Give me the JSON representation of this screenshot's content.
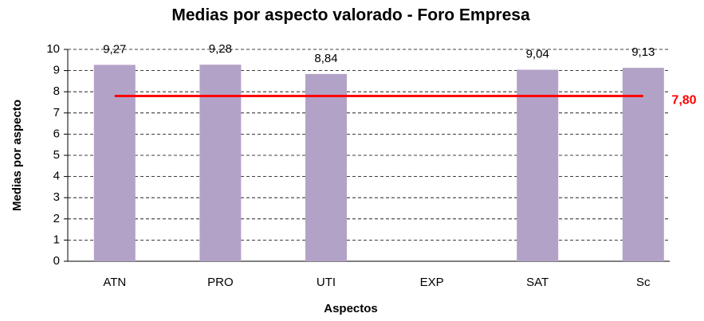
{
  "chart_data": {
    "type": "bar",
    "title": "Medias por aspecto valorado - Foro Empresa",
    "xlabel": "Aspectos",
    "ylabel": "Medias por aspecto",
    "categories": [
      "ATN",
      "PRO",
      "UTI",
      "EXP",
      "SAT",
      "Sc"
    ],
    "values": [
      9.27,
      9.28,
      8.84,
      null,
      9.04,
      9.13
    ],
    "value_labels": [
      "9,27",
      "9,28",
      "8,84",
      null,
      "9,04",
      "9,13"
    ],
    "color": "#b3a2c7",
    "ylim": [
      0,
      10
    ],
    "yticks": [
      0,
      1,
      2,
      3,
      4,
      5,
      6,
      7,
      8,
      9,
      10
    ],
    "grid": true,
    "reference_line": {
      "value": 7.8,
      "label": "7,80",
      "color": "#ff0000"
    }
  }
}
